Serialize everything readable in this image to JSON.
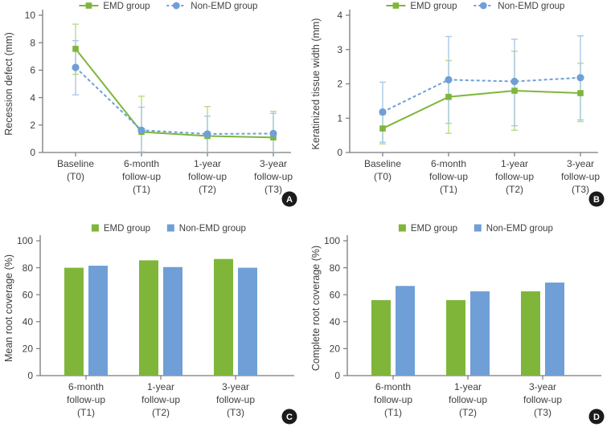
{
  "colors": {
    "emd": "#7fb63a",
    "emd_light": "#b9dc7e",
    "non_emd": "#6f9fd6",
    "non_emd_light": "#a9c8e8",
    "axis": "#7a7a7a",
    "text": "#3f3f3f",
    "badge_bg": "#1b1b1b",
    "badge_text": "#ffffff"
  },
  "chart_data": [
    {
      "panel": "A",
      "badge": "A",
      "type": "line",
      "ylabel": "Recession defect (mm)",
      "ylim": [
        0,
        10
      ],
      "yticks": [
        0,
        2,
        4,
        6,
        8,
        10
      ],
      "categories": [
        [
          "Baseline",
          "(T0)"
        ],
        [
          "6-month",
          "follow-up",
          "(T1)"
        ],
        [
          "1-year",
          "follow-up",
          "(T2)"
        ],
        [
          "3-year",
          "follow-up",
          "(T3)"
        ]
      ],
      "legend_position": "top",
      "grid": false,
      "series": [
        {
          "name": "EMD group",
          "color": "#7fb63a",
          "light": "#b9dc7e",
          "marker": "square",
          "line": "solid",
          "values": [
            7.55,
            1.5,
            1.2,
            1.1
          ],
          "err_low": [
            5.7,
            0,
            0,
            0
          ],
          "err_high": [
            9.35,
            4.1,
            3.35,
            3.0
          ]
        },
        {
          "name": "Non-EMD group",
          "color": "#6f9fd6",
          "light": "#a9c8e8",
          "marker": "circle",
          "line": "dashed",
          "values": [
            6.2,
            1.62,
            1.35,
            1.38
          ],
          "err_low": [
            4.2,
            0.05,
            0,
            0
          ],
          "err_high": [
            8.15,
            3.3,
            2.65,
            2.85
          ]
        }
      ]
    },
    {
      "panel": "B",
      "badge": "B",
      "type": "line",
      "ylabel": "Keratinized tissue width (mm)",
      "ylim": [
        0,
        4
      ],
      "yticks": [
        0,
        1,
        2,
        3,
        4
      ],
      "categories": [
        [
          "Baseline",
          "(T0)"
        ],
        [
          "6-month",
          "follow-up",
          "(T1)"
        ],
        [
          "1-year",
          "follow-up",
          "(T2)"
        ],
        [
          "3-year",
          "follow-up",
          "(T3)"
        ]
      ],
      "legend_position": "top",
      "grid": false,
      "series": [
        {
          "name": "EMD group",
          "color": "#7fb63a",
          "light": "#b9dc7e",
          "marker": "square",
          "line": "solid",
          "values": [
            0.7,
            1.62,
            1.8,
            1.73
          ],
          "err_low": [
            0.25,
            0.56,
            0.65,
            0.9
          ],
          "err_high": [
            1.1,
            2.68,
            2.95,
            2.6
          ]
        },
        {
          "name": "Non-EMD group",
          "color": "#6f9fd6",
          "light": "#a9c8e8",
          "marker": "circle",
          "line": "dashed",
          "values": [
            1.18,
            2.12,
            2.07,
            2.18
          ],
          "err_low": [
            0.3,
            0.85,
            0.78,
            0.95
          ],
          "err_high": [
            2.05,
            3.38,
            3.3,
            3.4
          ]
        }
      ]
    },
    {
      "panel": "C",
      "badge": "C",
      "type": "bar",
      "ylabel": "Mean root coverage (%)",
      "ylim": [
        0,
        100
      ],
      "yticks": [
        0,
        20,
        40,
        60,
        80,
        100
      ],
      "categories": [
        [
          "6-month",
          "follow-up",
          "(T1)"
        ],
        [
          "1-year",
          "follow-up",
          "(T2)"
        ],
        [
          "3-year",
          "follow-up",
          "(T3)"
        ]
      ],
      "legend_position": "top",
      "grid": false,
      "series": [
        {
          "name": "EMD group",
          "color": "#7fb63a",
          "values": [
            80,
            85.5,
            86.5
          ]
        },
        {
          "name": "Non-EMD group",
          "color": "#6f9fd6",
          "values": [
            81.5,
            80.5,
            80
          ]
        }
      ]
    },
    {
      "panel": "D",
      "badge": "D",
      "type": "bar",
      "ylabel": "Complete root coverage (%)",
      "ylim": [
        0,
        100
      ],
      "yticks": [
        0,
        20,
        40,
        60,
        80,
        100
      ],
      "categories": [
        [
          "6-month",
          "follow-up",
          "(T1)"
        ],
        [
          "1-year",
          "follow-up",
          "(T2)"
        ],
        [
          "3-year",
          "follow-up",
          "(T3)"
        ]
      ],
      "legend_position": "top",
      "grid": false,
      "series": [
        {
          "name": "EMD group",
          "color": "#7fb63a",
          "values": [
            56,
            56,
            62.5
          ]
        },
        {
          "name": "Non-EMD group",
          "color": "#6f9fd6",
          "values": [
            66.5,
            62.5,
            69
          ]
        }
      ]
    }
  ]
}
